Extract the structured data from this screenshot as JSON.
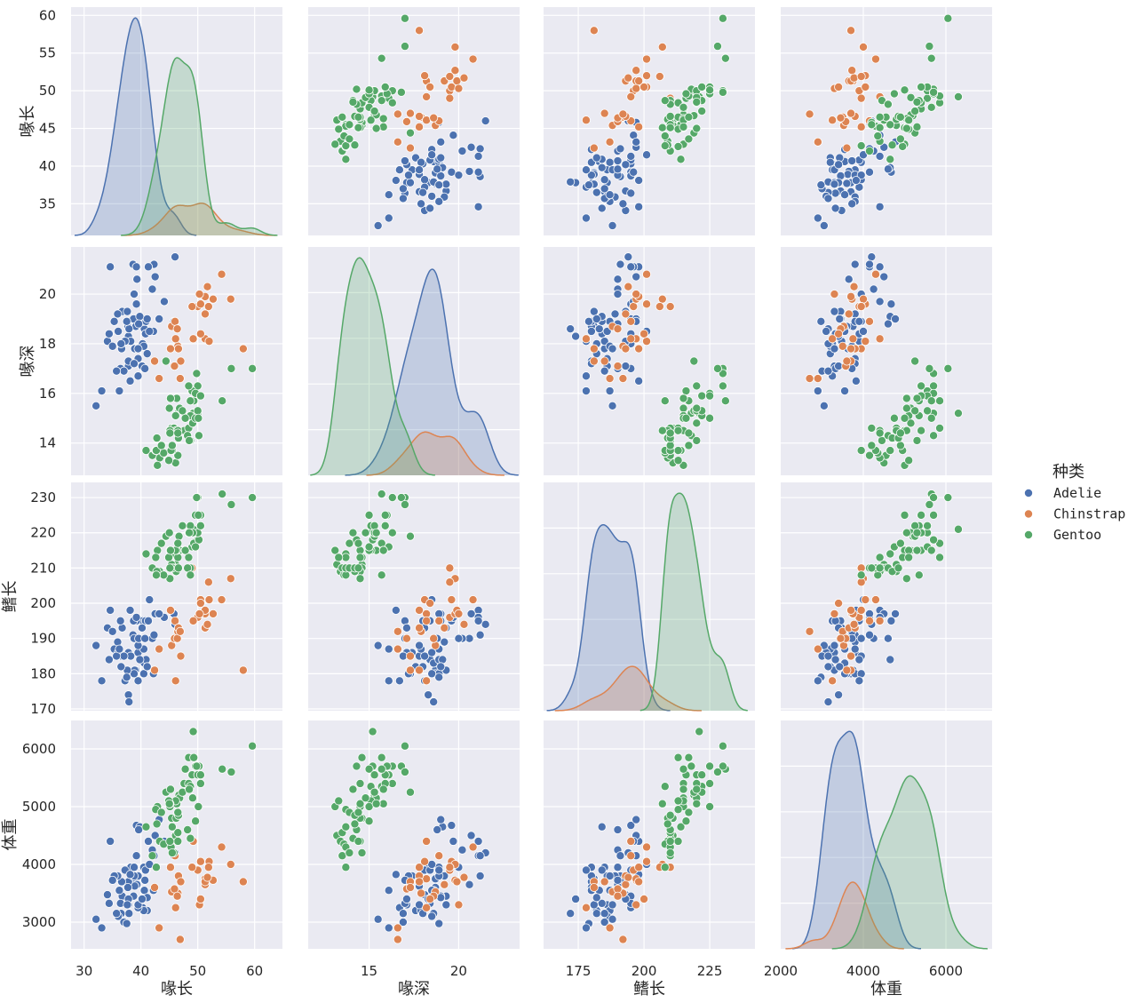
{
  "chart_data": {
    "type": "scatter",
    "kind": "pairplot",
    "diagonal_kind": "kde",
    "grid": true,
    "legend_placement": "right",
    "background": "#eaeaf2",
    "variables": [
      {
        "label": "喙长",
        "lim": [
          27.7,
          64.9
        ],
        "ticks": [
          30,
          40,
          50,
          60
        ],
        "row_ticks": [
          35,
          40,
          45,
          50,
          55,
          60
        ],
        "row_lim": [
          30.8,
          61.1
        ]
      },
      {
        "label": "喙深",
        "lim": [
          11.6,
          23.4
        ],
        "ticks": [
          15,
          20
        ],
        "row_ticks": [
          14,
          16,
          18,
          20
        ],
        "row_lim": [
          12.7,
          21.9
        ]
      },
      {
        "label": "鳍长",
        "lim": [
          161.8,
          242.2
        ],
        "ticks": [
          175,
          200,
          225
        ],
        "row_ticks": [
          170,
          180,
          190,
          200,
          210,
          220,
          230
        ],
        "row_lim": [
          169.5,
          234.3
        ]
      },
      {
        "label": "体重",
        "lim": [
          2000,
          7118
        ],
        "ticks": [
          2000,
          4000,
          6000
        ],
        "row_ticks": [
          3000,
          4000,
          5000,
          6000
        ],
        "row_lim": [
          2538,
          6492
        ]
      }
    ],
    "legend": {
      "title": "种类",
      "entries": [
        "Adelie",
        "Chinstrap",
        "Gentoo"
      ]
    },
    "series": [
      {
        "name": "Adelie",
        "color": "#4c72b0",
        "points": [
          [
            39.1,
            18.7,
            181,
            3750
          ],
          [
            39.5,
            17.4,
            186,
            3800
          ],
          [
            40.3,
            18.0,
            195,
            3250
          ],
          [
            36.7,
            19.3,
            193,
            3450
          ],
          [
            39.3,
            20.6,
            190,
            3650
          ],
          [
            38.9,
            17.8,
            181,
            3625
          ],
          [
            39.2,
            19.6,
            195,
            4675
          ],
          [
            34.1,
            18.1,
            193,
            3475
          ],
          [
            42.0,
            20.2,
            190,
            4250
          ],
          [
            37.8,
            17.1,
            186,
            3300
          ],
          [
            37.8,
            17.3,
            180,
            3700
          ],
          [
            41.1,
            17.6,
            182,
            3200
          ],
          [
            38.6,
            21.2,
            191,
            3800
          ],
          [
            34.6,
            21.1,
            198,
            4400
          ],
          [
            36.6,
            17.8,
            185,
            3700
          ],
          [
            38.7,
            19.0,
            195,
            3450
          ],
          [
            42.5,
            20.7,
            197,
            4500
          ],
          [
            34.4,
            18.4,
            184,
            3325
          ],
          [
            46.0,
            21.5,
            194,
            4200
          ],
          [
            37.8,
            18.3,
            174,
            3400
          ],
          [
            37.7,
            18.7,
            180,
            3600
          ],
          [
            35.9,
            19.2,
            189,
            3800
          ],
          [
            38.2,
            18.1,
            185,
            3950
          ],
          [
            38.8,
            17.2,
            180,
            3800
          ],
          [
            35.3,
            18.9,
            187,
            3800
          ],
          [
            40.6,
            18.6,
            183,
            3550
          ],
          [
            40.5,
            17.9,
            187,
            3200
          ],
          [
            37.9,
            18.6,
            172,
            3150
          ],
          [
            40.5,
            18.9,
            180,
            3950
          ],
          [
            39.5,
            16.7,
            178,
            3250
          ],
          [
            37.2,
            18.1,
            178,
            3900
          ],
          [
            39.5,
            17.8,
            188,
            3300
          ],
          [
            40.9,
            18.9,
            184,
            3900
          ],
          [
            36.4,
            17.0,
            195,
            3325
          ],
          [
            39.2,
            21.1,
            196,
            4150
          ],
          [
            38.8,
            20.0,
            190,
            3950
          ],
          [
            42.2,
            18.5,
            180,
            3550
          ],
          [
            37.6,
            19.3,
            181,
            3300
          ],
          [
            39.8,
            19.1,
            184,
            4650
          ],
          [
            36.5,
            18.0,
            182,
            3150
          ],
          [
            40.8,
            18.4,
            195,
            3900
          ],
          [
            36.0,
            18.5,
            186,
            3100
          ],
          [
            44.1,
            19.7,
            196,
            4400
          ],
          [
            37.0,
            16.9,
            185,
            3000
          ],
          [
            39.6,
            18.8,
            190,
            4600
          ],
          [
            41.1,
            19.0,
            182,
            3425
          ],
          [
            37.5,
            18.9,
            179,
            2975
          ],
          [
            42.3,
            21.2,
            191,
            4150
          ],
          [
            33.1,
            16.1,
            178,
            2900
          ],
          [
            32.1,
            15.5,
            188,
            3050
          ],
          [
            43.2,
            19.0,
            197,
            4775
          ],
          [
            35.7,
            16.9,
            185,
            3150
          ],
          [
            41.3,
            21.1,
            195,
            4400
          ],
          [
            40.2,
            17.1,
            193,
            3400
          ],
          [
            45.8,
            18.9,
            197,
            4150
          ],
          [
            36.2,
            16.1,
            187,
            3550
          ],
          [
            38.1,
            16.5,
            198,
            3825
          ],
          [
            35.0,
            17.9,
            192,
            3725
          ],
          [
            41.5,
            18.5,
            201,
            4000
          ],
          [
            40.7,
            17.0,
            190,
            3725
          ]
        ]
      },
      {
        "name": "Chinstrap",
        "color": "#dd8452",
        "points": [
          [
            46.5,
            17.9,
            192,
            3500
          ],
          [
            50.0,
            19.5,
            196,
            3900
          ],
          [
            51.3,
            19.2,
            193,
            3650
          ],
          [
            45.4,
            18.7,
            188,
            3525
          ],
          [
            52.7,
            19.8,
            197,
            3725
          ],
          [
            45.2,
            17.8,
            198,
            3950
          ],
          [
            46.1,
            18.2,
            178,
            3250
          ],
          [
            51.3,
            18.2,
            197,
            3750
          ],
          [
            46.0,
            18.9,
            195,
            4150
          ],
          [
            51.3,
            19.9,
            198,
            3700
          ],
          [
            46.6,
            17.8,
            193,
            3800
          ],
          [
            51.7,
            20.3,
            194,
            3775
          ],
          [
            47.0,
            17.3,
            185,
            3700
          ],
          [
            52.0,
            18.1,
            201,
            4050
          ],
          [
            45.9,
            17.1,
            190,
            3575
          ],
          [
            50.5,
            19.6,
            201,
            4050
          ],
          [
            50.3,
            20.0,
            197,
            3300
          ],
          [
            58.0,
            17.8,
            181,
            3700
          ],
          [
            46.4,
            18.6,
            190,
            3450
          ],
          [
            49.2,
            18.2,
            195,
            4400
          ],
          [
            42.4,
            17.3,
            181,
            3600
          ],
          [
            43.2,
            16.6,
            187,
            2900
          ],
          [
            46.9,
            16.6,
            192,
            2700
          ],
          [
            55.8,
            19.8,
            207,
            4000
          ],
          [
            54.2,
            20.8,
            201,
            4300
          ],
          [
            51.9,
            19.5,
            206,
            3950
          ],
          [
            50.5,
            18.4,
            200,
            3400
          ],
          [
            49.0,
            19.5,
            210,
            3950
          ]
        ]
      },
      {
        "name": "Gentoo",
        "color": "#55a868",
        "points": [
          [
            46.1,
            13.2,
            211,
            4500
          ],
          [
            50.0,
            16.3,
            230,
            5700
          ],
          [
            48.7,
            14.1,
            210,
            4450
          ],
          [
            50.0,
            15.2,
            218,
            5700
          ],
          [
            47.6,
            14.5,
            215,
            5400
          ],
          [
            46.5,
            13.5,
            210,
            4550
          ],
          [
            45.4,
            14.6,
            211,
            4800
          ],
          [
            46.7,
            15.3,
            219,
            5200
          ],
          [
            43.3,
            13.4,
            209,
            4400
          ],
          [
            46.8,
            15.4,
            215,
            5150
          ],
          [
            40.9,
            13.7,
            214,
            4650
          ],
          [
            49.0,
            16.1,
            216,
            5550
          ],
          [
            45.5,
            13.7,
            214,
            4650
          ],
          [
            48.4,
            14.6,
            213,
            5850
          ],
          [
            45.8,
            14.6,
            210,
            4200
          ],
          [
            49.3,
            15.7,
            217,
            5850
          ],
          [
            42.0,
            13.5,
            210,
            4150
          ],
          [
            49.2,
            15.2,
            221,
            6300
          ],
          [
            46.2,
            14.5,
            209,
            4800
          ],
          [
            48.7,
            15.1,
            222,
            5350
          ],
          [
            50.2,
            14.3,
            218,
            5700
          ],
          [
            45.1,
            14.5,
            215,
            5000
          ],
          [
            46.5,
            14.5,
            213,
            4400
          ],
          [
            46.3,
            15.8,
            215,
            5050
          ],
          [
            42.9,
            13.1,
            215,
            5000
          ],
          [
            46.1,
            15.1,
            215,
            5100
          ],
          [
            47.8,
            15.0,
            215,
            5650
          ],
          [
            48.2,
            14.3,
            210,
            4600
          ],
          [
            50.0,
            15.3,
            220,
            5550
          ],
          [
            47.3,
            15.3,
            222,
            5250
          ],
          [
            42.8,
            14.2,
            209,
            4700
          ],
          [
            45.1,
            14.5,
            207,
            5050
          ],
          [
            59.6,
            17.0,
            230,
            6050
          ],
          [
            49.1,
            14.8,
            220,
            5150
          ],
          [
            48.4,
            16.3,
            220,
            5400
          ],
          [
            42.6,
            13.7,
            213,
            4950
          ],
          [
            44.4,
            17.3,
            219,
            5250
          ],
          [
            44.0,
            13.6,
            208,
            4350
          ],
          [
            48.7,
            15.7,
            208,
            5350
          ],
          [
            42.7,
            13.7,
            208,
            3950
          ],
          [
            49.6,
            16.0,
            225,
            5700
          ],
          [
            45.3,
            13.7,
            210,
            4300
          ],
          [
            49.6,
            15.0,
            216,
            4750
          ],
          [
            50.5,
            15.9,
            222,
            5550
          ],
          [
            43.6,
            13.9,
            217,
            4900
          ],
          [
            45.5,
            13.9,
            210,
            4200
          ],
          [
            50.5,
            15.9,
            225,
            5400
          ],
          [
            44.9,
            13.3,
            213,
            5100
          ],
          [
            45.2,
            15.8,
            215,
            5300
          ],
          [
            46.6,
            14.2,
            210,
            4850
          ],
          [
            48.5,
            14.1,
            220,
            5300
          ],
          [
            45.1,
            14.4,
            210,
            4400
          ],
          [
            50.1,
            15.0,
            225,
            5000
          ],
          [
            46.5,
            14.4,
            217,
            4900
          ],
          [
            45.0,
            15.4,
            220,
            5050
          ],
          [
            54.3,
            15.7,
            231,
            5650
          ],
          [
            49.8,
            16.8,
            230,
            5700
          ],
          [
            55.9,
            17.0,
            228,
            5600
          ]
        ]
      }
    ]
  }
}
